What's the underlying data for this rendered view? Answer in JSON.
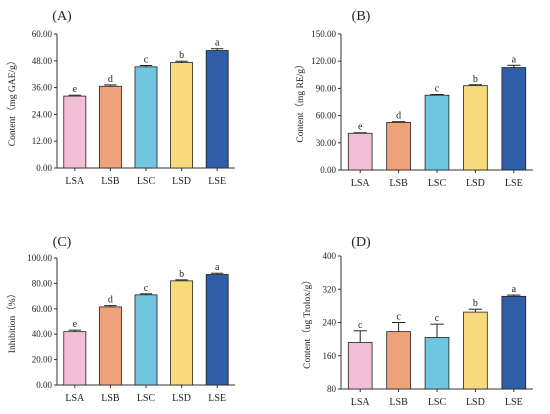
{
  "figure": {
    "colors": {
      "LSA": "#F2BFD6",
      "LSB": "#EFA17A",
      "LSC": "#6EC6E0",
      "LSD": "#F7DB7B",
      "LSE": "#2F5DA8",
      "axis": "#333333",
      "bar_edge": "#222222"
    }
  },
  "chart_data": [
    {
      "type": "bar",
      "panel_label": "(A)",
      "ylabel": "Content（mg GAE/g）",
      "categories": [
        "LSA",
        "LSB",
        "LSC",
        "LSD",
        "LSE"
      ],
      "values": [
        32.2,
        36.6,
        45.3,
        47.2,
        52.6
      ],
      "errors": [
        0.4,
        0.6,
        0.6,
        0.6,
        0.8
      ],
      "significance": [
        "e",
        "d",
        "c",
        "b",
        "a"
      ],
      "ylim": [
        0,
        60
      ],
      "yticks": [
        0,
        12,
        24,
        36,
        48,
        60
      ],
      "ytick_labels": [
        "0.00",
        "12.00",
        "24.00",
        "36.00",
        "48.00",
        "60.00"
      ]
    },
    {
      "type": "bar",
      "panel_label": "(B)",
      "ylabel": "Content（mg RE/g）",
      "categories": [
        "LSA",
        "LSB",
        "LSC",
        "LSD",
        "LSE"
      ],
      "values": [
        40.5,
        52.5,
        82.5,
        93.0,
        113.0
      ],
      "errors": [
        0.6,
        0.8,
        0.8,
        1.0,
        2.5
      ],
      "significance": [
        "e",
        "d",
        "c",
        "b",
        "a"
      ],
      "ylim": [
        0,
        150
      ],
      "yticks": [
        0,
        30,
        60,
        90,
        120,
        150
      ],
      "ytick_labels": [
        "0.00",
        "30.00",
        "60.00",
        "90.00",
        "120.00",
        "150.00"
      ]
    },
    {
      "type": "bar",
      "panel_label": "(C)",
      "ylabel": "Inhibition（%）",
      "categories": [
        "LSA",
        "LSB",
        "LSC",
        "LSD",
        "LSE"
      ],
      "values": [
        42.0,
        61.5,
        71.0,
        82.0,
        87.0
      ],
      "errors": [
        1.2,
        1.0,
        0.8,
        0.8,
        1.0
      ],
      "significance": [
        "e",
        "d",
        "c",
        "b",
        "a"
      ],
      "ylim": [
        0,
        100
      ],
      "yticks": [
        0,
        20,
        40,
        60,
        80,
        100
      ],
      "ytick_labels": [
        "0.00",
        "20.00",
        "40.00",
        "60.00",
        "80.00",
        "100.00"
      ]
    },
    {
      "type": "bar",
      "panel_label": "(D)",
      "ylabel": "Content（ug Trolox/g）",
      "categories": [
        "LSA",
        "LSB",
        "LSC",
        "LSD",
        "LSE"
      ],
      "values": [
        192,
        218,
        204,
        265,
        303
      ],
      "errors": [
        28,
        22,
        32,
        7,
        3
      ],
      "significance": [
        "c",
        "c",
        "c",
        "b",
        "a"
      ],
      "ylim": [
        80,
        400
      ],
      "yticks": [
        80,
        160,
        240,
        320,
        400
      ],
      "ytick_labels": [
        "80",
        "160",
        "240",
        "320",
        "400"
      ]
    }
  ]
}
